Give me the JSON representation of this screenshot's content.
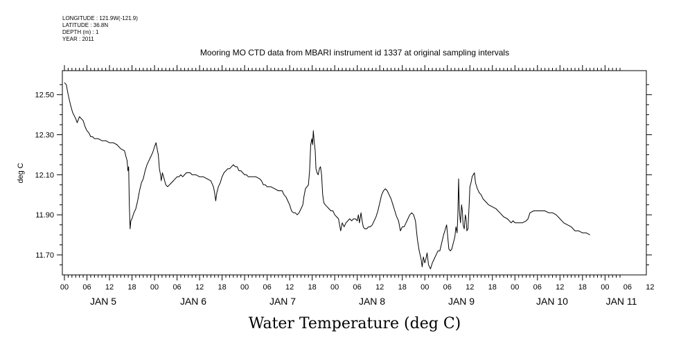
{
  "header": {
    "longitude": "LONGITUDE : 121.9W(-121.9)",
    "latitude": "LATITUDE : 36.8N",
    "depth": "DEPTH (m) : 1",
    "year": "YEAR : 2011"
  },
  "chart_data": {
    "type": "line",
    "title": "Mooring MO CTD data from MBARI instrument id 1337 at original sampling intervals",
    "xlabel": "Water Temperature (deg C)",
    "ylabel": "deg C",
    "ylim": [
      11.6,
      12.62
    ],
    "yticks": [
      11.7,
      11.9,
      12.1,
      12.3,
      12.5
    ],
    "ytick_labels": [
      "11.70",
      "11.90",
      "12.10",
      "12.30",
      "12.50"
    ],
    "x_unit": "hours since 2011-01-05 00:00",
    "xlim": [
      0,
      148
    ],
    "hour_tick_labels": [
      "00",
      "06",
      "12",
      "18",
      "00",
      "06",
      "12",
      "18",
      "00",
      "06",
      "12",
      "18",
      "00",
      "06",
      "12",
      "18",
      "00",
      "06",
      "12",
      "18",
      "00",
      "06",
      "12",
      "18",
      "00",
      "06",
      "12"
    ],
    "day_labels": [
      "JAN 5",
      "JAN 6",
      "JAN 7",
      "JAN 8",
      "JAN 9",
      "JAN 10",
      "JAN 11"
    ],
    "grid": false,
    "series": [
      {
        "name": "",
        "color": "#000000",
        "points": [
          [
            0,
            12.56
          ],
          [
            0.5,
            12.55
          ],
          [
            1,
            12.5
          ],
          [
            1.6,
            12.45
          ],
          [
            2.2,
            12.41
          ],
          [
            3,
            12.38
          ],
          [
            3.4,
            12.36
          ],
          [
            4,
            12.39
          ],
          [
            4.5,
            12.38
          ],
          [
            5,
            12.37
          ],
          [
            5.5,
            12.34
          ],
          [
            6,
            12.32
          ],
          [
            6.5,
            12.31
          ],
          [
            7,
            12.29
          ],
          [
            7.5,
            12.29
          ],
          [
            8,
            12.28
          ],
          [
            9,
            12.28
          ],
          [
            10,
            12.27
          ],
          [
            11,
            12.27
          ],
          [
            12,
            12.26
          ],
          [
            13,
            12.26
          ],
          [
            14,
            12.25
          ],
          [
            15,
            12.23
          ],
          [
            16,
            12.22
          ],
          [
            16.4,
            12.19
          ],
          [
            16.7,
            12.17
          ],
          [
            16.9,
            12.12
          ],
          [
            17.1,
            12.14
          ],
          [
            17.3,
            11.95
          ],
          [
            17.5,
            11.83
          ],
          [
            17.7,
            11.87
          ],
          [
            18,
            11.88
          ],
          [
            18.5,
            11.91
          ],
          [
            19,
            11.93
          ],
          [
            19.5,
            11.97
          ],
          [
            20,
            12.02
          ],
          [
            20.5,
            12.06
          ],
          [
            21,
            12.08
          ],
          [
            21.5,
            12.12
          ],
          [
            22,
            12.15
          ],
          [
            22.5,
            12.17
          ],
          [
            23,
            12.19
          ],
          [
            23.5,
            12.21
          ],
          [
            24,
            12.24
          ],
          [
            24.4,
            12.26
          ],
          [
            24.7,
            12.23
          ],
          [
            25,
            12.2
          ],
          [
            25.3,
            12.13
          ],
          [
            25.6,
            12.1
          ],
          [
            25.8,
            12.07
          ],
          [
            26.1,
            12.11
          ],
          [
            26.4,
            12.09
          ],
          [
            26.7,
            12.07
          ],
          [
            27,
            12.05
          ],
          [
            27.5,
            12.04
          ],
          [
            28,
            12.05
          ],
          [
            28.5,
            12.06
          ],
          [
            29,
            12.07
          ],
          [
            29.5,
            12.08
          ],
          [
            30,
            12.09
          ],
          [
            30.5,
            12.09
          ],
          [
            31,
            12.1
          ],
          [
            31.5,
            12.09
          ],
          [
            32,
            12.1
          ],
          [
            32.5,
            12.11
          ],
          [
            33,
            12.11
          ],
          [
            33.5,
            12.11
          ],
          [
            34,
            12.1
          ],
          [
            35,
            12.1
          ],
          [
            36,
            12.09
          ],
          [
            37,
            12.09
          ],
          [
            38,
            12.08
          ],
          [
            39,
            12.07
          ],
          [
            39.7,
            12.04
          ],
          [
            40,
            12.01
          ],
          [
            40.3,
            11.97
          ],
          [
            40.6,
            12.01
          ],
          [
            41,
            12.04
          ],
          [
            41.5,
            12.06
          ],
          [
            42,
            12.09
          ],
          [
            42.5,
            12.11
          ],
          [
            43,
            12.12
          ],
          [
            43.5,
            12.13
          ],
          [
            44,
            12.13
          ],
          [
            44.5,
            12.14
          ],
          [
            45,
            12.15
          ],
          [
            45.5,
            12.14
          ],
          [
            46,
            12.14
          ],
          [
            46.5,
            12.12
          ],
          [
            47,
            12.12
          ],
          [
            47.5,
            12.11
          ],
          [
            48,
            12.1
          ],
          [
            48.5,
            12.1
          ],
          [
            49,
            12.09
          ],
          [
            50,
            12.09
          ],
          [
            51,
            12.09
          ],
          [
            52,
            12.08
          ],
          [
            52.5,
            12.07
          ],
          [
            53,
            12.05
          ],
          [
            53.5,
            12.05
          ],
          [
            54,
            12.04
          ],
          [
            55,
            12.04
          ],
          [
            56,
            12.03
          ],
          [
            57,
            12.02
          ],
          [
            58,
            12.02
          ],
          [
            58.5,
            12.0
          ],
          [
            59,
            11.99
          ],
          [
            59.5,
            11.97
          ],
          [
            60,
            11.95
          ],
          [
            60.5,
            11.92
          ],
          [
            61,
            11.91
          ],
          [
            61.5,
            11.91
          ],
          [
            62,
            11.9
          ],
          [
            62.5,
            11.91
          ],
          [
            63,
            11.93
          ],
          [
            63.5,
            11.95
          ],
          [
            63.8,
            11.99
          ],
          [
            64.2,
            12.03
          ],
          [
            64.6,
            12.04
          ],
          [
            65,
            12.05
          ],
          [
            65.3,
            12.12
          ],
          [
            65.6,
            12.25
          ],
          [
            65.9,
            12.28
          ],
          [
            66.1,
            12.25
          ],
          [
            66.3,
            12.32
          ],
          [
            66.5,
            12.27
          ],
          [
            66.8,
            12.22
          ],
          [
            67,
            12.13
          ],
          [
            67.3,
            12.11
          ],
          [
            67.6,
            12.1
          ],
          [
            67.9,
            12.13
          ],
          [
            68.2,
            12.14
          ],
          [
            68.5,
            12.1
          ],
          [
            68.8,
            12.0
          ],
          [
            69.1,
            11.96
          ],
          [
            69.5,
            11.95
          ],
          [
            70,
            11.94
          ],
          [
            70.5,
            11.93
          ],
          [
            71,
            11.92
          ],
          [
            71.5,
            11.92
          ],
          [
            72,
            11.9
          ],
          [
            72.5,
            11.89
          ],
          [
            73,
            11.88
          ],
          [
            73.3,
            11.85
          ],
          [
            73.6,
            11.82
          ],
          [
            74,
            11.86
          ],
          [
            74.5,
            11.84
          ],
          [
            75,
            11.86
          ],
          [
            75.5,
            11.87
          ],
          [
            76,
            11.88
          ],
          [
            76.5,
            11.87
          ],
          [
            77,
            11.88
          ],
          [
            77.5,
            11.88
          ],
          [
            78,
            11.87
          ],
          [
            78.3,
            11.9
          ],
          [
            78.6,
            11.86
          ],
          [
            79,
            11.91
          ],
          [
            79.3,
            11.87
          ],
          [
            79.6,
            11.84
          ],
          [
            80,
            11.83
          ],
          [
            80.5,
            11.83
          ],
          [
            81,
            11.84
          ],
          [
            81.5,
            11.84
          ],
          [
            82,
            11.85
          ],
          [
            82.5,
            11.87
          ],
          [
            83,
            11.89
          ],
          [
            83.5,
            11.92
          ],
          [
            84,
            11.96
          ],
          [
            84.5,
            12.0
          ],
          [
            85,
            12.02
          ],
          [
            85.5,
            12.03
          ],
          [
            86,
            12.02
          ],
          [
            86.5,
            12.0
          ],
          [
            87,
            11.98
          ],
          [
            87.5,
            11.95
          ],
          [
            88,
            11.92
          ],
          [
            88.5,
            11.89
          ],
          [
            89,
            11.87
          ],
          [
            89.5,
            11.82
          ],
          [
            90,
            11.84
          ],
          [
            90.5,
            11.84
          ],
          [
            91,
            11.86
          ],
          [
            91.5,
            11.88
          ],
          [
            92,
            11.9
          ],
          [
            92.5,
            11.91
          ],
          [
            93,
            11.9
          ],
          [
            93.5,
            11.87
          ],
          [
            94,
            11.78
          ],
          [
            94.5,
            11.72
          ],
          [
            95,
            11.68
          ],
          [
            95.3,
            11.64
          ],
          [
            95.6,
            11.69
          ],
          [
            96,
            11.66
          ],
          [
            96.3,
            11.68
          ],
          [
            96.6,
            11.71
          ],
          [
            97,
            11.65
          ],
          [
            97.5,
            11.63
          ],
          [
            98,
            11.66
          ],
          [
            98.5,
            11.68
          ],
          [
            99,
            11.7
          ],
          [
            99.5,
            11.72
          ],
          [
            100,
            11.72
          ],
          [
            100.5,
            11.76
          ],
          [
            101,
            11.8
          ],
          [
            101.5,
            11.83
          ],
          [
            101.8,
            11.85
          ],
          [
            102.1,
            11.79
          ],
          [
            102.4,
            11.73
          ],
          [
            102.8,
            11.72
          ],
          [
            103.2,
            11.73
          ],
          [
            103.6,
            11.76
          ],
          [
            104,
            11.79
          ],
          [
            104.3,
            11.84
          ],
          [
            104.6,
            11.81
          ],
          [
            104.8,
            11.9
          ],
          [
            105,
            12.08
          ],
          [
            105.2,
            11.92
          ],
          [
            105.5,
            11.86
          ],
          [
            105.8,
            11.95
          ],
          [
            106,
            11.92
          ],
          [
            106.2,
            11.85
          ],
          [
            106.5,
            11.83
          ],
          [
            106.8,
            11.9
          ],
          [
            107,
            11.88
          ],
          [
            107.2,
            11.82
          ],
          [
            107.5,
            11.83
          ],
          [
            107.8,
            11.95
          ],
          [
            108,
            12.04
          ],
          [
            108.3,
            12.06
          ],
          [
            108.6,
            12.09
          ],
          [
            108.9,
            12.1
          ],
          [
            109.2,
            12.11
          ],
          [
            109.5,
            12.06
          ],
          [
            110,
            12.03
          ],
          [
            110.5,
            12.01
          ],
          [
            111,
            12.0
          ],
          [
            111.5,
            11.98
          ],
          [
            112,
            11.97
          ],
          [
            112.5,
            11.96
          ],
          [
            113,
            11.95
          ],
          [
            114,
            11.94
          ],
          [
            115,
            11.93
          ],
          [
            116,
            11.91
          ],
          [
            117,
            11.89
          ],
          [
            118,
            11.88
          ],
          [
            118.5,
            11.87
          ],
          [
            119,
            11.86
          ],
          [
            119.5,
            11.87
          ],
          [
            120,
            11.86
          ],
          [
            121,
            11.86
          ],
          [
            122,
            11.86
          ],
          [
            123,
            11.87
          ],
          [
            123.5,
            11.88
          ],
          [
            124,
            11.91
          ],
          [
            125,
            11.92
          ],
          [
            126,
            11.92
          ],
          [
            127,
            11.92
          ],
          [
            128,
            11.92
          ],
          [
            129,
            11.91
          ],
          [
            130,
            11.91
          ],
          [
            131,
            11.9
          ],
          [
            132,
            11.88
          ],
          [
            133,
            11.86
          ],
          [
            134,
            11.85
          ],
          [
            135,
            11.84
          ],
          [
            136,
            11.82
          ],
          [
            137,
            11.82
          ],
          [
            138,
            11.81
          ],
          [
            139,
            11.81
          ],
          [
            140,
            11.8
          ]
        ]
      }
    ]
  }
}
